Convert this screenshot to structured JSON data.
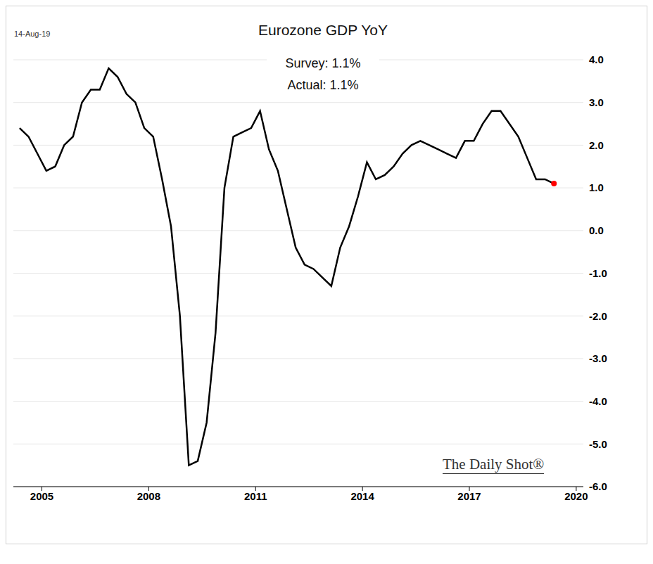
{
  "chart_data": {
    "type": "line",
    "title": "Eurozone GDP YoY",
    "date": "14-Aug-19",
    "annotations": [
      "Survey: 1.1%",
      "Actual: 1.1%"
    ],
    "source": "The Daily Shot®",
    "x": [
      2004.375,
      2004.625,
      2004.875,
      2005.125,
      2005.375,
      2005.625,
      2005.875,
      2006.125,
      2006.375,
      2006.625,
      2006.875,
      2007.125,
      2007.375,
      2007.625,
      2007.875,
      2008.125,
      2008.375,
      2008.625,
      2008.875,
      2009.125,
      2009.375,
      2009.625,
      2009.875,
      2010.125,
      2010.375,
      2010.625,
      2010.875,
      2011.125,
      2011.375,
      2011.625,
      2011.875,
      2012.125,
      2012.375,
      2012.625,
      2012.875,
      2013.125,
      2013.375,
      2013.625,
      2013.875,
      2014.125,
      2014.375,
      2014.625,
      2014.875,
      2015.125,
      2015.375,
      2015.625,
      2015.875,
      2016.125,
      2016.375,
      2016.625,
      2016.875,
      2017.125,
      2017.375,
      2017.625,
      2017.875,
      2018.125,
      2018.375,
      2018.625,
      2018.875,
      2019.125,
      2019.375
    ],
    "series": [
      {
        "name": "Eurozone GDP YoY",
        "color": "#000000",
        "marker": "last",
        "values": [
          2.4,
          2.2,
          1.8,
          1.4,
          1.5,
          2.0,
          2.2,
          3.0,
          3.3,
          3.3,
          3.8,
          3.6,
          3.2,
          3.0,
          2.4,
          2.2,
          1.2,
          0.1,
          -2.0,
          -5.5,
          -5.4,
          -4.5,
          -2.4,
          1.0,
          2.2,
          2.3,
          2.4,
          2.8,
          1.9,
          1.4,
          0.5,
          -0.4,
          -0.8,
          -0.9,
          -1.1,
          -1.3,
          -0.4,
          0.1,
          0.8,
          1.6,
          1.2,
          1.3,
          1.5,
          1.8,
          2.0,
          2.1,
          2.0,
          1.9,
          1.8,
          1.7,
          2.1,
          2.1,
          2.5,
          2.8,
          2.8,
          2.5,
          2.2,
          1.7,
          1.2,
          1.2,
          1.1
        ]
      }
    ],
    "xlim": [
      2004.2,
      2020.2
    ],
    "xticks": [
      2005,
      2008,
      2011,
      2014,
      2017,
      2020
    ],
    "ylim": [
      -6,
      4
    ],
    "yticks": [
      {
        "value": 4,
        "label": "4.0"
      },
      {
        "value": 3,
        "label": "3.0"
      },
      {
        "value": 2,
        "label": "2.0"
      },
      {
        "value": 1,
        "label": "1.0"
      },
      {
        "value": 0,
        "label": "0.0"
      },
      {
        "value": -1,
        "label": "-1.0"
      },
      {
        "value": -2,
        "label": "-2.0"
      },
      {
        "value": -3,
        "label": "-3.0"
      },
      {
        "value": -4,
        "label": "-4.0"
      },
      {
        "value": -5,
        "label": "-5.0"
      },
      {
        "value": -6,
        "label": "-6.0"
      }
    ],
    "grid": true
  }
}
